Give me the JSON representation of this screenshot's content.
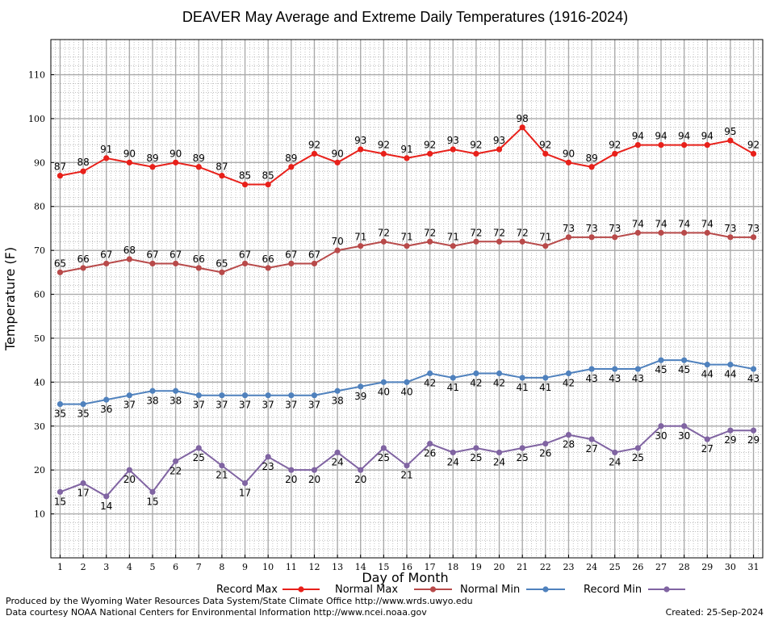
{
  "chart_data": {
    "type": "line",
    "title": "DEAVER May Average and Extreme Daily Temperatures (1916-2024)",
    "xlabel": "Day of Month",
    "ylabel": "Temperature (F)",
    "x": [
      1,
      2,
      3,
      4,
      5,
      6,
      7,
      8,
      9,
      10,
      11,
      12,
      13,
      14,
      15,
      16,
      17,
      18,
      19,
      20,
      21,
      22,
      23,
      24,
      25,
      26,
      27,
      28,
      29,
      30,
      31
    ],
    "xlim": [
      0.6,
      31.4
    ],
    "ylim": [
      0,
      118
    ],
    "y_ticks": [
      10,
      20,
      30,
      40,
      50,
      60,
      70,
      80,
      90,
      100,
      110
    ],
    "grid": true,
    "legend_position": "bottom",
    "series": [
      {
        "name": "Record Max",
        "color": "#e8201a",
        "label_pos": "above",
        "values": [
          87,
          88,
          91,
          90,
          89,
          90,
          89,
          87,
          85,
          85,
          89,
          92,
          90,
          93,
          92,
          91,
          92,
          93,
          92,
          93,
          98,
          92,
          90,
          89,
          92,
          94,
          94,
          94,
          94,
          95,
          92
        ]
      },
      {
        "name": "Normal Max",
        "color": "#b84a4a",
        "label_pos": "above",
        "values": [
          65,
          66,
          67,
          68,
          67,
          67,
          66,
          65,
          67,
          66,
          67,
          67,
          70,
          71,
          72,
          71,
          72,
          71,
          72,
          72,
          72,
          71,
          73,
          73,
          73,
          74,
          74,
          74,
          74,
          73,
          73
        ]
      },
      {
        "name": "Normal Min",
        "color": "#4f81bd",
        "label_pos": "below",
        "values": [
          35,
          35,
          36,
          37,
          38,
          38,
          37,
          37,
          37,
          37,
          37,
          37,
          38,
          39,
          40,
          40,
          42,
          41,
          42,
          42,
          41,
          41,
          42,
          43,
          43,
          43,
          45,
          45,
          44,
          44,
          43
        ]
      },
      {
        "name": "Record Min",
        "color": "#8064a2",
        "label_pos": "below",
        "values": [
          15,
          17,
          14,
          20,
          15,
          22,
          25,
          21,
          17,
          23,
          20,
          20,
          24,
          20,
          25,
          21,
          26,
          24,
          25,
          24,
          25,
          26,
          28,
          27,
          24,
          25,
          30,
          30,
          27,
          29,
          29
        ]
      }
    ]
  },
  "footer": {
    "produced_by": "Produced by the Wyoming Water Resources Data System/State Climate Office http://www.wrds.uwyo.edu",
    "courtesy": "Data courtesy NOAA National Centers for Environmental Information http://www.ncei.noaa.gov",
    "created": "Created:  25-Sep-2024"
  }
}
